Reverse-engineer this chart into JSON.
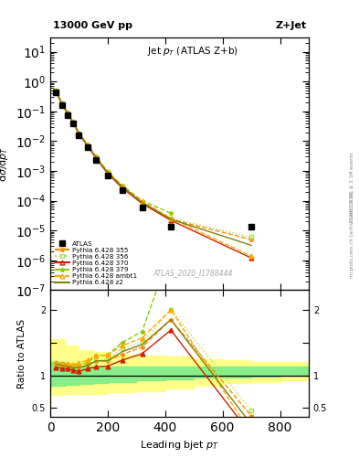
{
  "title_top": "13000 GeV pp",
  "title_right": "Z+Jet",
  "plot_title": "Jet $p_T$ (ATLAS Z+b)",
  "xlabel": "Leading bjet $p_T$",
  "ylabel_main": "d$\\sigma$/d$p_T$",
  "ylabel_ratio": "Ratio to ATLAS",
  "watermark": "ATLAS_2020_I1788444",
  "right_label_top": "Rivet 3.1.10, ≥ 3.1M events",
  "right_label_bot": "mcplots.cern.ch [arXiv:1306.3436]",
  "atlas_x": [
    20,
    40,
    60,
    80,
    100,
    130,
    160,
    200,
    250,
    320,
    420,
    700
  ],
  "atlas_y": [
    0.42,
    0.16,
    0.076,
    0.038,
    0.016,
    0.0062,
    0.0023,
    0.00072,
    0.00022,
    6e-05,
    1.3e-05,
    1.3e-05
  ],
  "py355_x": [
    20,
    40,
    60,
    80,
    100,
    130,
    160,
    200,
    250,
    320,
    420,
    700
  ],
  "py355_y": [
    0.5,
    0.188,
    0.088,
    0.043,
    0.018,
    0.0072,
    0.0028,
    0.00088,
    0.00029,
    8.6e-05,
    2.4e-05,
    5e-06
  ],
  "py356_x": [
    20,
    40,
    60,
    80,
    100,
    130,
    160,
    200,
    250,
    320,
    420,
    700
  ],
  "py356_y": [
    0.5,
    0.188,
    0.088,
    0.043,
    0.018,
    0.0072,
    0.0028,
    0.0009,
    0.00031,
    9e-05,
    2.6e-05,
    6e-06
  ],
  "py370_x": [
    20,
    40,
    60,
    80,
    100,
    130,
    160,
    200,
    250,
    320,
    420,
    700
  ],
  "py370_y": [
    0.47,
    0.178,
    0.084,
    0.041,
    0.017,
    0.0068,
    0.0026,
    0.00082,
    0.00027,
    8e-05,
    2.2e-05,
    1.2e-06
  ],
  "py379_x": [
    20,
    40,
    60,
    80,
    100,
    130,
    160,
    200,
    250,
    320,
    420
  ],
  "py379_y": [
    0.5,
    0.19,
    0.09,
    0.044,
    0.0185,
    0.0074,
    0.003,
    0.00094,
    0.00033,
    0.0001,
    3.8e-05
  ],
  "pyambt1_x": [
    20,
    40,
    60,
    80,
    100,
    130,
    160,
    200,
    250,
    320,
    420,
    700
  ],
  "pyambt1_y": [
    0.5,
    0.188,
    0.09,
    0.044,
    0.019,
    0.0076,
    0.003,
    0.00094,
    0.00032,
    9.4e-05,
    2.6e-05,
    1.4e-06
  ],
  "pyz2_x": [
    20,
    40,
    60,
    80,
    100,
    130,
    160,
    200,
    250,
    320,
    420,
    700
  ],
  "pyz2_y": [
    0.49,
    0.184,
    0.087,
    0.042,
    0.018,
    0.0071,
    0.0028,
    0.00088,
    0.0003,
    8.8e-05,
    2.4e-05,
    3.2e-06
  ],
  "py355_ratio_x": [
    20,
    40,
    60,
    80,
    100,
    130,
    160,
    200,
    250,
    320,
    420,
    700
  ],
  "py355_ratio_y": [
    1.19,
    1.17,
    1.15,
    1.13,
    1.11,
    1.16,
    1.22,
    1.22,
    1.32,
    1.43,
    1.85,
    0.38
  ],
  "py356_ratio_x": [
    20,
    40,
    60,
    80,
    100,
    130,
    160,
    200,
    250,
    320,
    420,
    700
  ],
  "py356_ratio_y": [
    1.19,
    1.17,
    1.15,
    1.13,
    1.11,
    1.16,
    1.22,
    1.25,
    1.41,
    1.5,
    2.0,
    0.46
  ],
  "py370_ratio_x": [
    20,
    40,
    60,
    80,
    100,
    130,
    160,
    200,
    250,
    320,
    420,
    700
  ],
  "py370_ratio_y": [
    1.12,
    1.11,
    1.1,
    1.08,
    1.06,
    1.1,
    1.13,
    1.14,
    1.23,
    1.33,
    1.69,
    0.09
  ],
  "py379_ratio_x": [
    20,
    40,
    60,
    80,
    100,
    130,
    160,
    200,
    250,
    320,
    420
  ],
  "py379_ratio_y": [
    1.19,
    1.18,
    1.18,
    1.16,
    1.16,
    1.19,
    1.3,
    1.31,
    1.5,
    1.67,
    2.92
  ],
  "pyambt1_ratio_x": [
    20,
    40,
    60,
    80,
    100,
    130,
    160,
    200,
    250,
    320,
    420,
    700
  ],
  "pyambt1_ratio_y": [
    1.19,
    1.17,
    1.18,
    1.16,
    1.19,
    1.23,
    1.3,
    1.31,
    1.45,
    1.57,
    2.0,
    0.11
  ],
  "pyz2_ratio_x": [
    20,
    40,
    60,
    80,
    100,
    130,
    160,
    200,
    250,
    320,
    420,
    700
  ],
  "pyz2_ratio_y": [
    1.17,
    1.15,
    1.14,
    1.11,
    1.12,
    1.15,
    1.22,
    1.22,
    1.36,
    1.47,
    1.85,
    0.25
  ],
  "band_yellow_x": [
    0,
    50,
    100,
    150,
    200,
    300,
    400,
    500,
    600,
    700,
    800,
    900
  ],
  "band_yellow_lo": [
    0.5,
    0.7,
    0.72,
    0.72,
    0.72,
    0.74,
    0.76,
    0.8,
    0.84,
    0.88,
    0.9,
    0.92
  ],
  "band_yellow_hi": [
    1.65,
    1.55,
    1.45,
    1.38,
    1.35,
    1.32,
    1.3,
    1.28,
    1.25,
    1.23,
    1.21,
    1.2
  ],
  "band_green_x": [
    0,
    50,
    100,
    150,
    200,
    300,
    400,
    500,
    600,
    700,
    800,
    900
  ],
  "band_green_lo": [
    0.78,
    0.84,
    0.86,
    0.87,
    0.88,
    0.9,
    0.92,
    0.94,
    0.96,
    0.97,
    0.98,
    0.99
  ],
  "band_green_hi": [
    1.25,
    1.2,
    1.16,
    1.14,
    1.13,
    1.13,
    1.13,
    1.13,
    1.13,
    1.13,
    1.13,
    1.13
  ],
  "color_355": "#ff8c00",
  "color_356": "#aae050",
  "color_370": "#cc2200",
  "color_379": "#88cc00",
  "color_ambt1": "#ffaa00",
  "color_z2": "#808010",
  "ylim_main": [
    1e-07,
    30
  ],
  "ylim_ratio": [
    0.37,
    2.3
  ],
  "xlim": [
    0,
    900
  ]
}
